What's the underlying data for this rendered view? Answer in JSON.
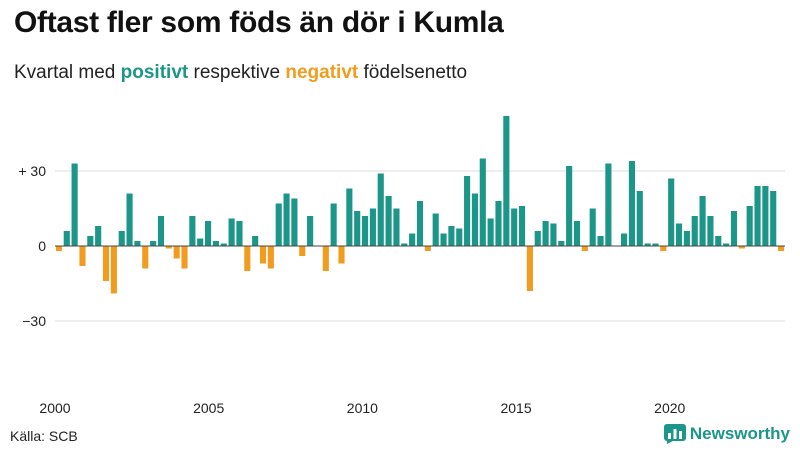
{
  "title": "Oftast fler som föds än dör i Kumla",
  "subtitle": {
    "pre": "Kvartal med ",
    "positive_word": "positivt",
    "mid": " respektive ",
    "negative_word": "negativt",
    "post": " födelsenetto"
  },
  "colors": {
    "positive": "#1b9688",
    "negative": "#f29c1f",
    "grid": "#dddddd",
    "axis": "#444444"
  },
  "source": "Källa: SCB",
  "brand": {
    "name": "Newsworthy",
    "icon": "newsworthy-chart-icon"
  },
  "chart_data": {
    "type": "bar",
    "title": "Oftast fler som föds än dör i Kumla",
    "subtitle": "Kvartal med positivt respektive negativt födelsenetto",
    "x_start": 2000,
    "x_end": 2023.75,
    "x_ticks": [
      {
        "value": 2000,
        "label": "2000"
      },
      {
        "value": 2005,
        "label": "2005"
      },
      {
        "value": 2010,
        "label": "2010"
      },
      {
        "value": 2015,
        "label": "2015"
      },
      {
        "value": 2020,
        "label": "2020"
      }
    ],
    "y_ticks": [
      {
        "value": 30,
        "label": "+ 30"
      },
      {
        "value": 0,
        "label": "0"
      },
      {
        "value": -30,
        "label": "−30"
      }
    ],
    "ylim": [
      -55,
      55
    ],
    "grid": true,
    "values": [
      -2,
      6,
      33,
      -8,
      4,
      8,
      -14,
      -19,
      6,
      21,
      2,
      -9,
      2,
      12,
      -1,
      -5,
      -9,
      12,
      3,
      10,
      2,
      1,
      11,
      10,
      -10,
      4,
      -7,
      -9,
      17,
      21,
      19,
      -4,
      12,
      0,
      -10,
      17,
      -7,
      23,
      14,
      12,
      15,
      29,
      20,
      15,
      1,
      5,
      18,
      -2,
      13,
      5,
      8,
      7,
      28,
      21,
      35,
      11,
      18,
      52,
      15,
      16,
      -18,
      6,
      10,
      9,
      2,
      32,
      10,
      -2,
      15,
      4,
      33,
      0,
      5,
      34,
      22,
      1,
      1,
      -2,
      27,
      9,
      6,
      12,
      20,
      12,
      4,
      1,
      14,
      -1,
      16,
      24,
      24,
      22,
      -2
    ]
  }
}
